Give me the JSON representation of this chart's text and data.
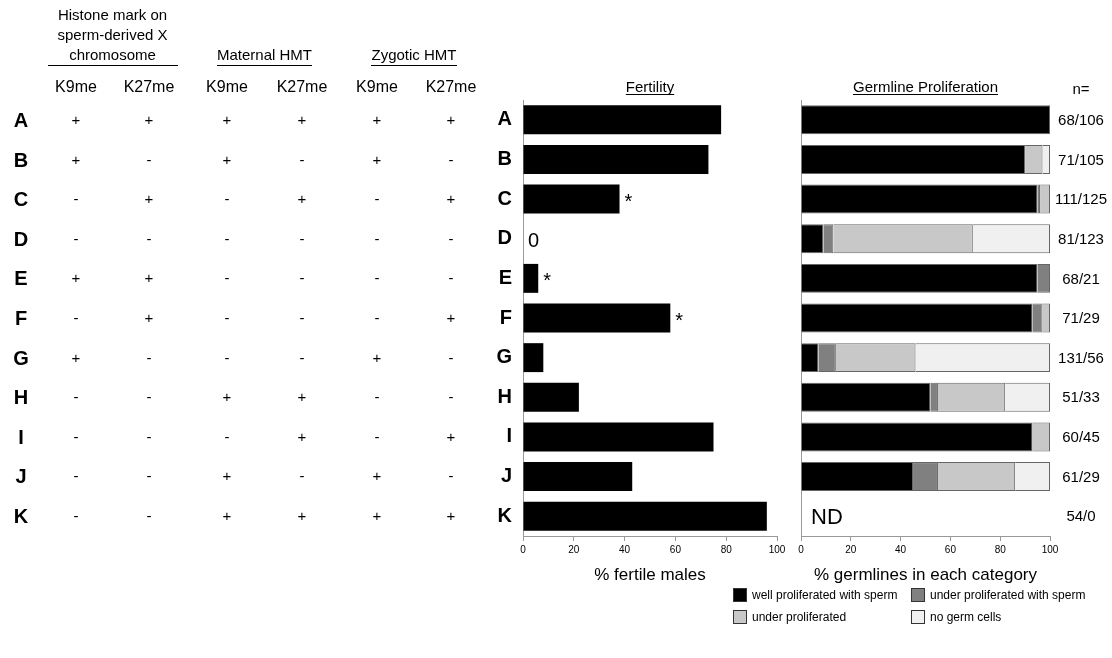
{
  "chart_data": [
    {
      "type": "other",
      "annotations": [
        "Histone mark on sperm-derived X chromosome",
        "Maternal HMT",
        "Zygotic HMT"
      ],
      "categories": [
        "K9me",
        "K27me",
        "K9me",
        "K27me",
        "K9me",
        "K27me"
      ],
      "y_categories": [
        "A",
        "B",
        "C",
        "D",
        "E",
        "F",
        "G",
        "H",
        "I",
        "J",
        "K"
      ],
      "cell_labels": [
        [
          "+",
          "+",
          "+",
          "+",
          "+",
          "+"
        ],
        [
          "+",
          "-",
          "+",
          "-",
          "+",
          "-"
        ],
        [
          "-",
          "+",
          "-",
          "+",
          "-",
          "+"
        ],
        [
          "-",
          "-",
          "-",
          "-",
          "-",
          "-"
        ],
        [
          "+",
          "+",
          "-",
          "-",
          "-",
          "-"
        ],
        [
          "-",
          "+",
          "-",
          "-",
          "-",
          "+"
        ],
        [
          "+",
          "-",
          "-",
          "-",
          "+",
          "-"
        ],
        [
          "-",
          "-",
          "+",
          "+",
          "-",
          "-"
        ],
        [
          "-",
          "-",
          "-",
          "+",
          "-",
          "+"
        ],
        [
          "-",
          "-",
          "+",
          "-",
          "+",
          "-"
        ],
        [
          "-",
          "-",
          "+",
          "+",
          "+",
          "+"
        ]
      ]
    },
    {
      "type": "bar",
      "orientation": "horizontal",
      "title": "Fertility",
      "xlabel": "% fertile males",
      "categories": [
        "A",
        "B",
        "C",
        "D",
        "E",
        "F",
        "G",
        "H",
        "I",
        "J",
        "K"
      ],
      "values": [
        78,
        73,
        38,
        0,
        6,
        58,
        8,
        22,
        75,
        43,
        96
      ],
      "color": "#000000",
      "xlim": [
        0,
        100
      ],
      "xticks": [
        0,
        20,
        40,
        60,
        80,
        100
      ],
      "annotations": [
        {
          "text": "*",
          "x": 38,
          "y": "C"
        },
        {
          "text": "0",
          "x": 0,
          "y": "D"
        },
        {
          "text": "*",
          "x": 6,
          "y": "E"
        },
        {
          "text": "*",
          "x": 58,
          "y": "F"
        }
      ]
    },
    {
      "type": "bar",
      "orientation": "horizontal",
      "stacked": true,
      "title": "Germline Proliferation",
      "xlabel": "% germlines in each category",
      "categories": [
        "A",
        "B",
        "C",
        "D",
        "E",
        "F",
        "G",
        "H",
        "I",
        "J",
        "K"
      ],
      "series": [
        {
          "name": "well proliferated with sperm",
          "color": "#000000",
          "values": [
            100,
            90,
            95,
            9,
            95,
            93,
            7,
            52,
            93,
            45,
            null
          ]
        },
        {
          "name": "under proliferated with sperm",
          "color": "#808080",
          "values": [
            0,
            0,
            1,
            4,
            5,
            4,
            7,
            3,
            0,
            10,
            null
          ]
        },
        {
          "name": "under proliferated",
          "color": "#c8c8c8",
          "values": [
            0,
            7,
            4,
            56,
            0,
            3,
            32,
            27,
            7,
            31,
            null
          ]
        },
        {
          "name": "no germ cells",
          "color": "#f0f0f0",
          "values": [
            0,
            3,
            0,
            31,
            0,
            0,
            54,
            18,
            0,
            14,
            null
          ]
        }
      ],
      "xlim": [
        0,
        100
      ],
      "xticks": [
        0,
        20,
        40,
        60,
        80,
        100
      ],
      "tick_labels": "x",
      "legend": "bottom",
      "annotations": [
        "n=",
        "68/106",
        "71/105",
        "111/125",
        "81/123",
        "68/21",
        "71/29",
        "131/56",
        "51/33",
        "60/45",
        "61/29",
        "54/0",
        "ND"
      ]
    }
  ]
}
